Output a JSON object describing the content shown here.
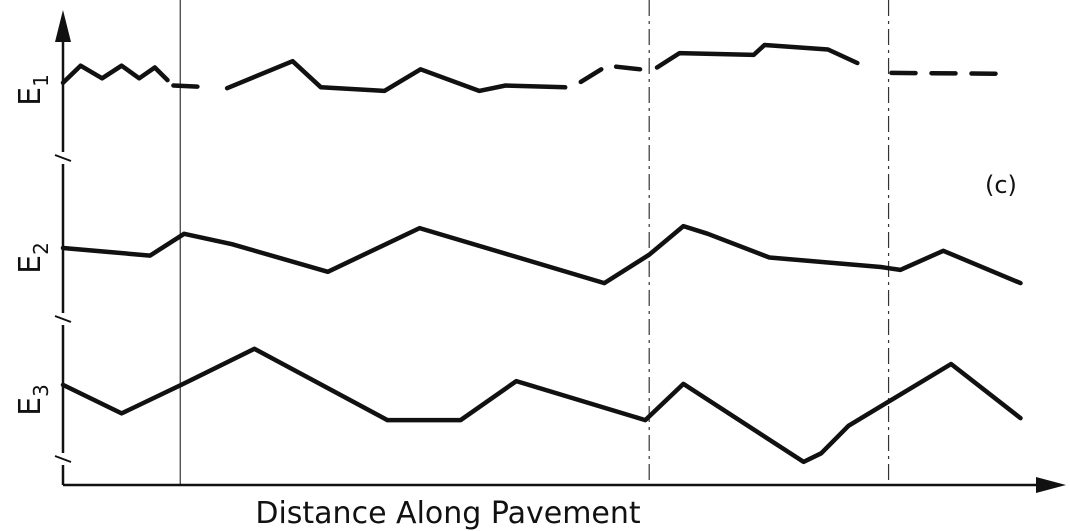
{
  "chart_data": {
    "type": "line",
    "title": "",
    "xlabel": "Distance Along Pavement",
    "ylabel": "",
    "panel_label": "(c)",
    "x_units": "relative distance (0–100)",
    "xlim": [
      0,
      100
    ],
    "ylim_per_series": [
      0,
      10
    ],
    "grid": false,
    "legend": "none",
    "y_axis_breaks": true,
    "vertical_markers": [
      {
        "x": 12,
        "style": "solid"
      },
      {
        "x": 60,
        "style": "dashdot"
      },
      {
        "x": 84.5,
        "style": "dashdot"
      }
    ],
    "series": [
      {
        "name": "E1",
        "name_main": "E",
        "name_sub": "1",
        "segments": [
          {
            "style": "solid",
            "points": [
              [
                0,
                5.8
              ],
              [
                1.8,
                7.7
              ],
              [
                4,
                6.3
              ],
              [
                6,
                7.7
              ],
              [
                7.8,
                6.3
              ],
              [
                9.4,
                7.5
              ],
              [
                10.7,
                6.1
              ]
            ]
          },
          {
            "style": "dashed",
            "points": [
              [
                11.3,
                5.5
              ],
              [
                15.3,
                5.3
              ]
            ]
          },
          {
            "style": "solid",
            "points": [
              [
                16.8,
                5.2
              ],
              [
                23.5,
                8.2
              ],
              [
                26.4,
                5.3
              ],
              [
                32.9,
                4.9
              ],
              [
                36.6,
                7.3
              ],
              [
                42.6,
                4.9
              ],
              [
                45.3,
                5.5
              ],
              [
                51.4,
                5.3
              ]
            ]
          },
          {
            "style": "dashed",
            "points": [
              [
                53,
                5.9
              ],
              [
                55.7,
                7.7
              ],
              [
                59.9,
                7.2
              ]
            ]
          },
          {
            "style": "solid",
            "points": [
              [
                60.8,
                7.5
              ],
              [
                63.1,
                9.1
              ],
              [
                70.7,
                8.9
              ],
              [
                71.8,
                10
              ],
              [
                78.3,
                9.5
              ],
              [
                81.3,
                8
              ]
            ]
          },
          {
            "style": "dashed",
            "points": [
              [
                84.5,
                7
              ]
            ],
            "note": ""
          },
          {
            "style": "dashed",
            "points": [
              [
                84.8,
                6.9
              ],
              [
                96.7,
                6.8
              ]
            ]
          }
        ]
      },
      {
        "name": "E2",
        "name_main": "E",
        "name_sub": "2",
        "segments": [
          {
            "style": "solid",
            "points": [
              [
                0,
                6
              ],
              [
                8.9,
                5.2
              ],
              [
                12.4,
                7.5
              ],
              [
                17.3,
                6.4
              ],
              [
                27.1,
                3.5
              ],
              [
                36.5,
                8.1
              ],
              [
                55.4,
                2.3
              ],
              [
                60,
                5.3
              ],
              [
                63.5,
                8.3
              ],
              [
                66,
                7.5
              ],
              [
                72.3,
                5
              ],
              [
                83.7,
                4
              ],
              [
                85.7,
                3.7
              ],
              [
                90.1,
                5.7
              ],
              [
                98,
                2.3
              ]
            ]
          }
        ]
      },
      {
        "name": "E3",
        "name_main": "E",
        "name_sub": "3",
        "segments": [
          {
            "style": "solid",
            "points": [
              [
                0,
                5.8
              ],
              [
                6,
                2.8
              ],
              [
                12.1,
                5.8
              ],
              [
                19.6,
                9.6
              ],
              [
                33.2,
                2.1
              ],
              [
                40.7,
                2.1
              ],
              [
                46.4,
                6.2
              ],
              [
                59.6,
                2.1
              ],
              [
                63.5,
                5.9
              ],
              [
                75.8,
                -2.3
              ],
              [
                77.6,
                -1.4
              ],
              [
                80.4,
                1.5
              ],
              [
                90.9,
                8
              ],
              [
                98,
                2.3
              ]
            ]
          }
        ]
      }
    ]
  }
}
